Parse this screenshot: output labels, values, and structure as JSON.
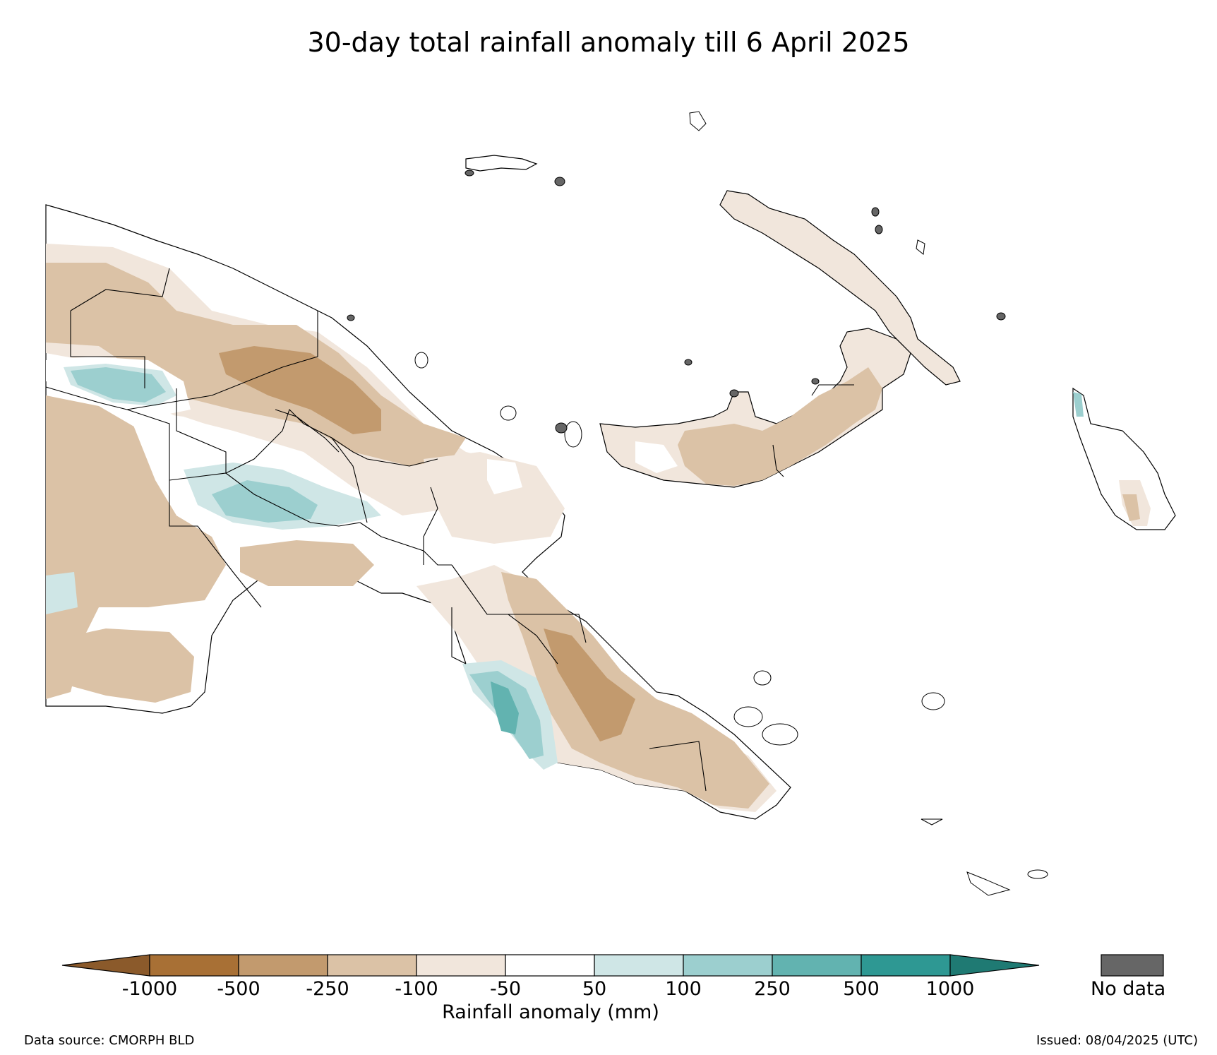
{
  "title": "30-day total rainfall anomaly till 6 April 2025",
  "colorbar": {
    "label": "Rainfall anomaly (mm)",
    "ticks": [
      "-1000",
      "-500",
      "-250",
      "-100",
      "-50",
      "50",
      "100",
      "250",
      "500",
      "1000"
    ],
    "colors": [
      "#8b5a2b",
      "#a87035",
      "#c29a6e",
      "#dbc2a6",
      "#f1e6dc",
      "#ffffff",
      "#cfe6e6",
      "#9ccfcf",
      "#62b3b0",
      "#2e9893",
      "#1f7a73"
    ],
    "no_data_label": "No data",
    "no_data_color": "#666666"
  },
  "footer": {
    "source": "Data source: CMORPH BLD",
    "issued": "Issued: 08/04/2025 (UTC)"
  }
}
